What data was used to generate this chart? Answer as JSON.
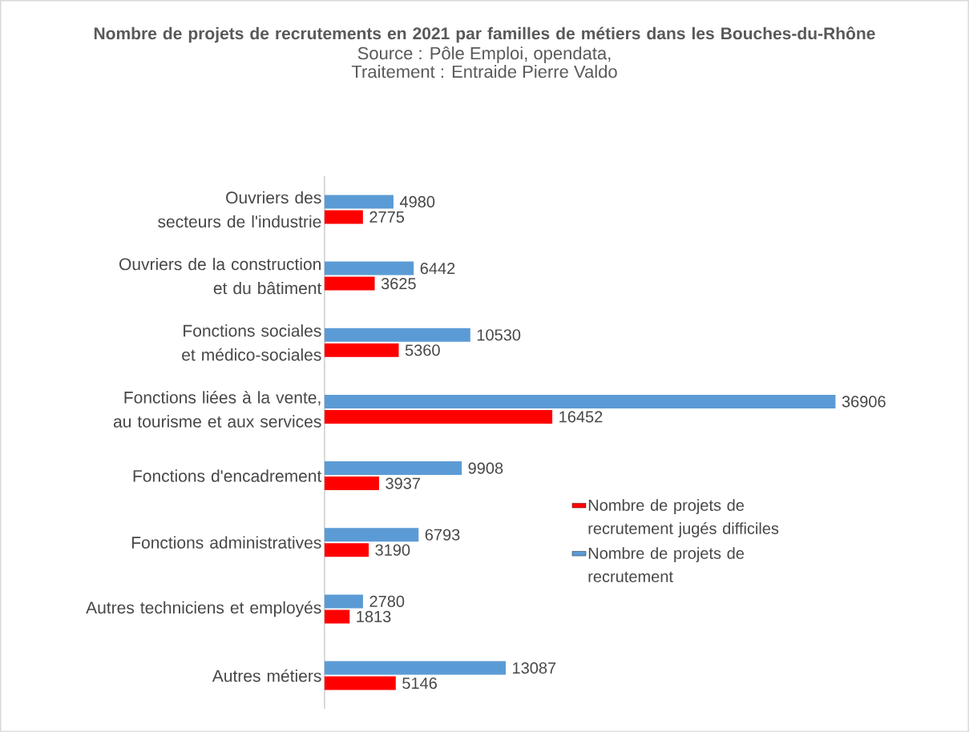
{
  "chart_data": {
    "type": "bar",
    "orientation": "horizontal",
    "title": "Nombre de projets de recrutements en 2021 par familles de métiers dans les Bouches-du-Rhône",
    "annotations": [
      "Source : Pôle Emploi, opendata,",
      "Traitement : Entraide Pierre Valdo"
    ],
    "categories": [
      "Ouvriers des secteurs de l'industrie",
      "Ouvriers de la construction et du bâtiment",
      "Fonctions sociales et médico-sociales",
      "Fonctions liées à la vente, au tourisme et aux services",
      "Fonctions d'encadrement",
      "Fonctions administratives",
      "Autres techniciens et employés",
      "Autres métiers"
    ],
    "series": [
      {
        "name": "Nombre de projets de recrutement jugés difficiles",
        "color": "#ff0000",
        "values": [
          2775,
          3625,
          5360,
          16452,
          3937,
          3190,
          1813,
          5146
        ]
      },
      {
        "name": "Nombre de projets de recrutement",
        "color": "#5b9bd5",
        "values": [
          4980,
          6442,
          10530,
          36906,
          9908,
          6793,
          2780,
          13087
        ]
      }
    ],
    "data_labels": true,
    "legend": "right"
  }
}
